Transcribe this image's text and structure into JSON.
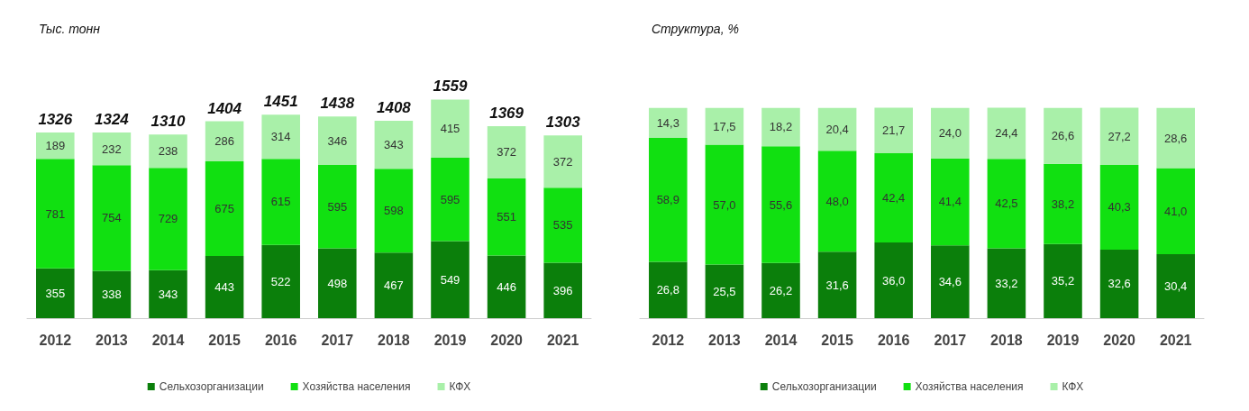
{
  "chart_data": [
    {
      "type": "bar",
      "title": "Тыс. тонн",
      "stacked": true,
      "data_labels": true,
      "grid": false,
      "legend": "bottom",
      "tick_labels": "x",
      "categories": [
        "2012",
        "2013",
        "2014",
        "2015",
        "2016",
        "2017",
        "2018",
        "2019",
        "2020",
        "2021"
      ],
      "series": [
        {
          "name": "Сельхозорганизации",
          "color": "#0b7f0b",
          "values": [
            355,
            338,
            343,
            443,
            522,
            498,
            467,
            549,
            446,
            396
          ]
        },
        {
          "name": "Хозяйства населения",
          "color": "#11e011",
          "values": [
            781,
            754,
            729,
            675,
            615,
            595,
            598,
            595,
            551,
            535
          ]
        },
        {
          "name": "КФХ",
          "color": "#a9f0a9",
          "values": [
            189,
            232,
            238,
            286,
            314,
            346,
            343,
            415,
            372,
            372
          ]
        }
      ],
      "totals": [
        "1326",
        "1324",
        "1310",
        "1404",
        "1451",
        "1438",
        "1408",
        "1559",
        "1369",
        "1303"
      ]
    },
    {
      "type": "bar",
      "title": "Структура, %",
      "stacked": true,
      "grid": false,
      "legend": "bottom",
      "tick_labels": "x",
      "categories": [
        "2012",
        "2013",
        "2014",
        "2015",
        "2016",
        "2017",
        "2018",
        "2019",
        "2020",
        "2021"
      ],
      "series": [
        {
          "name": "Сельхозорганизации",
          "color": "#0b7f0b",
          "values": [
            26.8,
            25.5,
            26.2,
            31.6,
            36.0,
            34.6,
            33.2,
            35.2,
            32.6,
            30.4
          ],
          "value_labels": [
            "26,8",
            "25,5",
            "26,2",
            "31,6",
            "36,0",
            "34,6",
            "33,2",
            "35,2",
            "32,6",
            "30,4"
          ]
        },
        {
          "name": "Хозяйства населения",
          "color": "#11e011",
          "values": [
            58.9,
            57.0,
            55.6,
            48.0,
            42.4,
            41.4,
            42.5,
            38.2,
            40.3,
            41.0
          ],
          "value_labels": [
            "58,9",
            "57,0",
            "55,6",
            "48,0",
            "42,4",
            "41,4",
            "42,5",
            "38,2",
            "40,3",
            "41,0"
          ]
        },
        {
          "name": "КФХ",
          "color": "#a9f0a9",
          "values": [
            14.3,
            17.5,
            18.2,
            20.4,
            21.7,
            24.0,
            24.4,
            26.6,
            27.2,
            28.6
          ],
          "value_labels": [
            "14,3",
            "17,5",
            "18,2",
            "20,4",
            "21,7",
            "24,0",
            "24,4",
            "26,6",
            "27,2",
            "28,6"
          ]
        }
      ]
    }
  ]
}
